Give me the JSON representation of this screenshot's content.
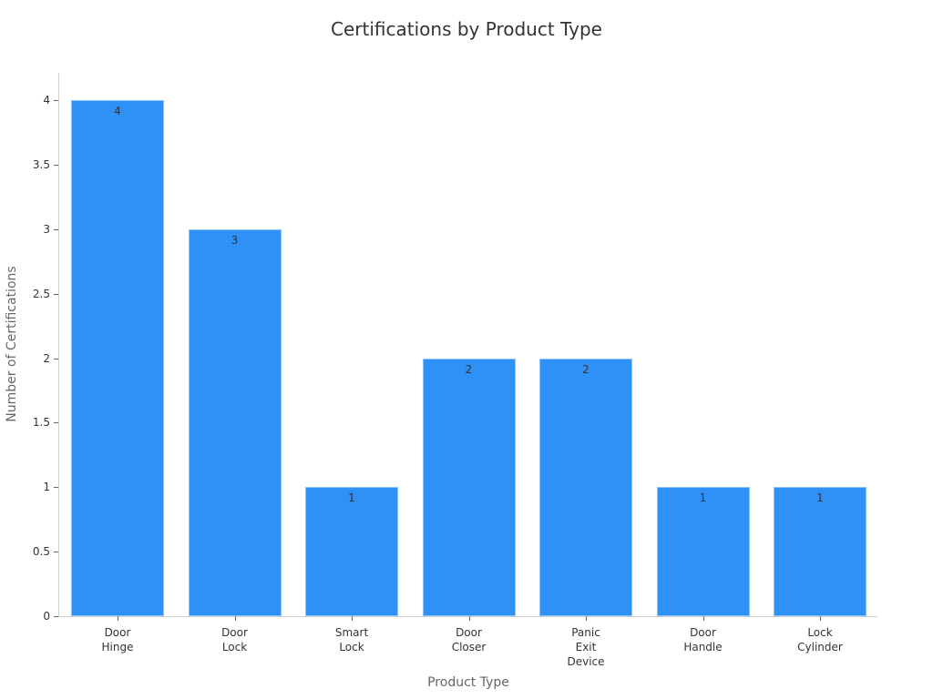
{
  "chart_data": {
    "type": "bar",
    "title": "Certifications by Product Type",
    "xlabel": "Product Type",
    "ylabel": "Number of Certifications",
    "categories": [
      "Door Hinge",
      "Door Lock",
      "Smart Lock",
      "Door Closer",
      "Panic Exit Device",
      "Door Handle",
      "Lock Cylinder"
    ],
    "category_labels_wrapped": [
      "Door\nHinge",
      "Door\nLock",
      "Smart\nLock",
      "Door\nCloser",
      "Panic\nExit\nDevice",
      "Door\nHandle",
      "Lock\nCylinder"
    ],
    "values": [
      4,
      3,
      1,
      2,
      2,
      1,
      1
    ],
    "data_labels": [
      "4",
      "3",
      "1",
      "2",
      "2",
      "1",
      "1"
    ],
    "ylim": [
      0,
      4.2
    ],
    "yticks": [
      "0",
      "0.5",
      "1",
      "1.5",
      "2",
      "2.5",
      "3",
      "3.5",
      "4"
    ],
    "grid": false,
    "legend": null,
    "bar_color": "#2f91f6"
  }
}
